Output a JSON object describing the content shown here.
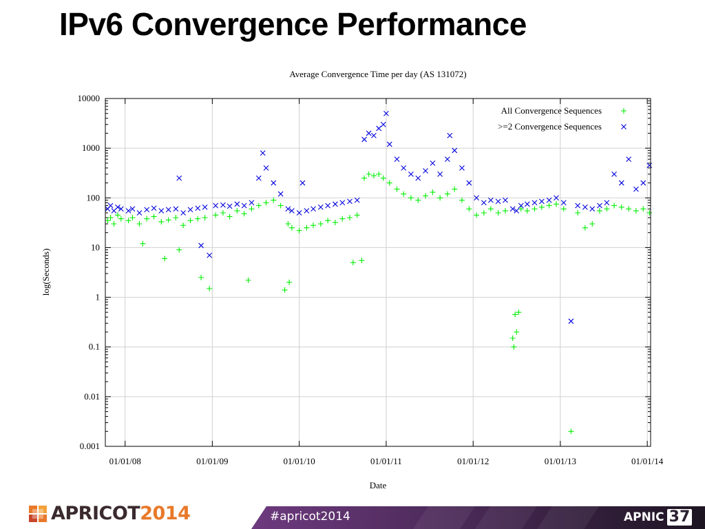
{
  "slide": {
    "title": "IPv6 Convergence Performance"
  },
  "chart_data": {
    "type": "scatter",
    "title": "Average Convergence Time per day (AS 131072)",
    "xlabel": "Date",
    "ylabel": "log(Seconds)",
    "yscale": "log",
    "ylim": [
      0.001,
      10000
    ],
    "xlim": [
      "2007-10-10",
      "2014-01-15"
    ],
    "y_ticks": [
      "0.001",
      "0.01",
      "0.1",
      "1",
      "10",
      "100",
      "1000",
      "10000"
    ],
    "x_ticks": [
      "01/01/08",
      "01/01/09",
      "01/01/10",
      "01/01/11",
      "01/01/12",
      "01/01/13",
      "01/01/14"
    ],
    "grid": true,
    "legend_position": "top-right",
    "series": [
      {
        "name": "All Convergence Sequences",
        "marker": "+",
        "color": "#00ee00",
        "points": [
          [
            "2007-10-20",
            35
          ],
          [
            "2007-11-01",
            40
          ],
          [
            "2007-11-15",
            30
          ],
          [
            "2007-12-01",
            45
          ],
          [
            "2007-12-15",
            38
          ],
          [
            "2008-01-15",
            35
          ],
          [
            "2008-02-01",
            40
          ],
          [
            "2008-03-01",
            30
          ],
          [
            "2008-04-01",
            38
          ],
          [
            "2008-05-01",
            42
          ],
          [
            "2008-06-01",
            33
          ],
          [
            "2008-07-01",
            36
          ],
          [
            "2008-08-01",
            40
          ],
          [
            "2008-09-01",
            28
          ],
          [
            "2008-10-01",
            35
          ],
          [
            "2008-11-01",
            38
          ],
          [
            "2008-12-01",
            40
          ],
          [
            "2009-01-15",
            45
          ],
          [
            "2009-02-15",
            50
          ],
          [
            "2009-03-15",
            42
          ],
          [
            "2009-04-15",
            55
          ],
          [
            "2009-05-15",
            48
          ],
          [
            "2009-06-15",
            60
          ],
          [
            "2009-07-15",
            70
          ],
          [
            "2009-08-15",
            80
          ],
          [
            "2009-09-15",
            90
          ],
          [
            "2009-10-15",
            70
          ],
          [
            "2009-11-15",
            30
          ],
          [
            "2009-12-01",
            25
          ],
          [
            "2010-01-01",
            22
          ],
          [
            "2010-02-01",
            25
          ],
          [
            "2010-03-01",
            28
          ],
          [
            "2010-04-01",
            30
          ],
          [
            "2010-05-01",
            35
          ],
          [
            "2010-06-01",
            32
          ],
          [
            "2010-07-01",
            38
          ],
          [
            "2010-08-01",
            40
          ],
          [
            "2010-09-01",
            45
          ],
          [
            "2010-10-01",
            250
          ],
          [
            "2010-10-20",
            300
          ],
          [
            "2010-11-10",
            280
          ],
          [
            "2010-12-01",
            300
          ],
          [
            "2010-12-20",
            250
          ],
          [
            "2011-01-15",
            200
          ],
          [
            "2011-02-15",
            150
          ],
          [
            "2011-03-15",
            120
          ],
          [
            "2011-04-15",
            100
          ],
          [
            "2011-05-15",
            90
          ],
          [
            "2011-06-15",
            110
          ],
          [
            "2011-07-15",
            130
          ],
          [
            "2011-08-15",
            100
          ],
          [
            "2011-09-15",
            120
          ],
          [
            "2011-10-15",
            150
          ],
          [
            "2011-11-15",
            90
          ],
          [
            "2011-12-15",
            60
          ],
          [
            "2012-01-15",
            45
          ],
          [
            "2012-02-15",
            50
          ],
          [
            "2012-03-15",
            60
          ],
          [
            "2012-04-15",
            50
          ],
          [
            "2012-05-15",
            55
          ],
          [
            "2012-06-15",
            0.15
          ],
          [
            "2012-06-20",
            0.1
          ],
          [
            "2012-06-25",
            0.45
          ],
          [
            "2012-07-01",
            0.2
          ],
          [
            "2012-07-10",
            0.5
          ],
          [
            "2012-07-20",
            60
          ],
          [
            "2012-08-15",
            55
          ],
          [
            "2012-09-15",
            60
          ],
          [
            "2012-10-15",
            65
          ],
          [
            "2012-11-15",
            70
          ],
          [
            "2012-12-15",
            75
          ],
          [
            "2013-01-15",
            60
          ],
          [
            "2013-02-15",
            0.002
          ],
          [
            "2013-03-15",
            50
          ],
          [
            "2013-04-15",
            25
          ],
          [
            "2013-05-15",
            30
          ],
          [
            "2013-06-15",
            55
          ],
          [
            "2013-07-15",
            60
          ],
          [
            "2013-08-15",
            70
          ],
          [
            "2013-09-15",
            65
          ],
          [
            "2013-10-15",
            60
          ],
          [
            "2013-11-15",
            55
          ],
          [
            "2013-12-15",
            60
          ],
          [
            "2014-01-10",
            50
          ],
          [
            "2008-03-15",
            12
          ],
          [
            "2008-08-15",
            9
          ],
          [
            "2008-11-15",
            2.5
          ],
          [
            "2008-12-20",
            1.5
          ],
          [
            "2009-06-01",
            2.2
          ],
          [
            "2009-11-01",
            1.4
          ],
          [
            "2009-11-20",
            2.0
          ],
          [
            "2010-08-15",
            5
          ],
          [
            "2010-09-20",
            5.5
          ],
          [
            "2008-06-15",
            6
          ]
        ]
      },
      {
        "name": ">=2 Convergence Sequences",
        "marker": "x",
        "color": "#0000dd",
        "points": [
          [
            "2007-10-20",
            60
          ],
          [
            "2007-11-01",
            70
          ],
          [
            "2007-11-15",
            55
          ],
          [
            "2007-12-01",
            65
          ],
          [
            "2007-12-15",
            60
          ],
          [
            "2008-01-15",
            55
          ],
          [
            "2008-02-01",
            60
          ],
          [
            "2008-03-01",
            50
          ],
          [
            "2008-04-01",
            58
          ],
          [
            "2008-05-01",
            62
          ],
          [
            "2008-06-01",
            55
          ],
          [
            "2008-07-01",
            58
          ],
          [
            "2008-08-01",
            60
          ],
          [
            "2008-09-01",
            50
          ],
          [
            "2008-10-01",
            58
          ],
          [
            "2008-11-01",
            62
          ],
          [
            "2008-12-01",
            65
          ],
          [
            "2009-01-15",
            70
          ],
          [
            "2009-02-15",
            72
          ],
          [
            "2009-03-15",
            68
          ],
          [
            "2009-04-15",
            75
          ],
          [
            "2009-05-15",
            70
          ],
          [
            "2009-06-15",
            80
          ],
          [
            "2009-07-15",
            250
          ],
          [
            "2009-08-01",
            800
          ],
          [
            "2009-08-15",
            400
          ],
          [
            "2009-09-15",
            200
          ],
          [
            "2009-10-15",
            120
          ],
          [
            "2009-11-15",
            60
          ],
          [
            "2009-12-01",
            55
          ],
          [
            "2010-01-01",
            50
          ],
          [
            "2010-02-01",
            55
          ],
          [
            "2010-03-01",
            60
          ],
          [
            "2010-04-01",
            65
          ],
          [
            "2010-05-01",
            70
          ],
          [
            "2010-06-01",
            75
          ],
          [
            "2010-07-01",
            80
          ],
          [
            "2010-08-01",
            85
          ],
          [
            "2010-09-01",
            90
          ],
          [
            "2010-10-01",
            1500
          ],
          [
            "2010-10-20",
            2000
          ],
          [
            "2010-11-10",
            1800
          ],
          [
            "2010-12-01",
            2500
          ],
          [
            "2010-12-20",
            3000
          ],
          [
            "2011-01-01",
            5000
          ],
          [
            "2011-01-15",
            1200
          ],
          [
            "2011-02-15",
            600
          ],
          [
            "2011-03-15",
            400
          ],
          [
            "2011-04-15",
            300
          ],
          [
            "2011-05-15",
            250
          ],
          [
            "2011-06-15",
            350
          ],
          [
            "2011-07-15",
            500
          ],
          [
            "2011-08-15",
            300
          ],
          [
            "2011-09-15",
            600
          ],
          [
            "2011-10-15",
            900
          ],
          [
            "2011-11-15",
            400
          ],
          [
            "2011-12-15",
            200
          ],
          [
            "2012-01-15",
            100
          ],
          [
            "2012-02-15",
            80
          ],
          [
            "2012-03-15",
            90
          ],
          [
            "2012-04-15",
            85
          ],
          [
            "2012-05-15",
            90
          ],
          [
            "2012-06-15",
            60
          ],
          [
            "2012-07-01",
            55
          ],
          [
            "2012-07-20",
            70
          ],
          [
            "2012-08-15",
            75
          ],
          [
            "2012-09-15",
            80
          ],
          [
            "2012-10-15",
            85
          ],
          [
            "2012-11-15",
            90
          ],
          [
            "2012-12-15",
            100
          ],
          [
            "2013-01-15",
            80
          ],
          [
            "2013-02-15",
            0.33
          ],
          [
            "2013-03-15",
            70
          ],
          [
            "2013-04-15",
            65
          ],
          [
            "2013-05-15",
            60
          ],
          [
            "2013-06-15",
            70
          ],
          [
            "2013-07-15",
            80
          ],
          [
            "2013-08-15",
            300
          ],
          [
            "2013-09-15",
            200
          ],
          [
            "2013-10-15",
            600
          ],
          [
            "2013-11-15",
            150
          ],
          [
            "2013-12-15",
            200
          ],
          [
            "2014-01-10",
            450
          ],
          [
            "2008-08-15",
            250
          ],
          [
            "2008-12-20",
            7
          ],
          [
            "2008-11-15",
            11
          ],
          [
            "2010-01-15",
            200
          ],
          [
            "2011-09-25",
            1800
          ]
        ]
      }
    ]
  },
  "footer": {
    "hashtag": "#apricot2014",
    "apricot_word": "APRICOT",
    "apricot_year": "2014",
    "apnic_word": "APNIC",
    "apnic_number": "37"
  }
}
